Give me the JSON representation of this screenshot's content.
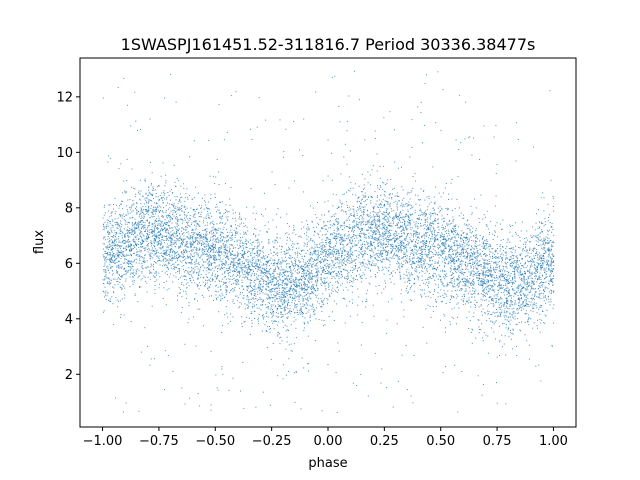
{
  "chart_data": {
    "type": "scatter",
    "title": "1SWASPJ161451.52-311816.7 Period 30336.38477s",
    "xlabel": "phase",
    "ylabel": "flux",
    "xlim": [
      -1.1,
      1.1
    ],
    "ylim": [
      0.1,
      13.4
    ],
    "x_ticks": [
      -1.0,
      -0.75,
      -0.5,
      -0.25,
      0.0,
      0.25,
      0.5,
      0.75,
      1.0
    ],
    "x_tick_labels": [
      "−1.00",
      "−0.75",
      "−0.50",
      "−0.25",
      "0.00",
      "0.25",
      "0.50",
      "0.75",
      "1.00"
    ],
    "y_ticks": [
      2,
      4,
      6,
      8,
      10,
      12
    ],
    "y_tick_labels": [
      "2",
      "4",
      "6",
      "8",
      "10",
      "12"
    ],
    "grid": false,
    "legend": "none",
    "point_color": "#1f77b4",
    "phase_range": [
      -1.0,
      1.0
    ],
    "approx_point_count": 9000,
    "series_trend": {
      "x": [
        -1.0,
        -0.9,
        -0.8,
        -0.7,
        -0.6,
        -0.5,
        -0.4,
        -0.3,
        -0.2,
        -0.1,
        0.0,
        0.1,
        0.2,
        0.3,
        0.4,
        0.5,
        0.6,
        0.7,
        0.8,
        0.9,
        1.0
      ],
      "y": [
        6.3,
        6.7,
        7.2,
        7.0,
        6.7,
        6.4,
        6.1,
        5.6,
        5.1,
        5.5,
        6.3,
        6.7,
        7.2,
        7.0,
        6.7,
        6.4,
        6.1,
        5.6,
        5.1,
        5.5,
        6.3
      ]
    },
    "scatter_spread_sd": 0.9
  }
}
